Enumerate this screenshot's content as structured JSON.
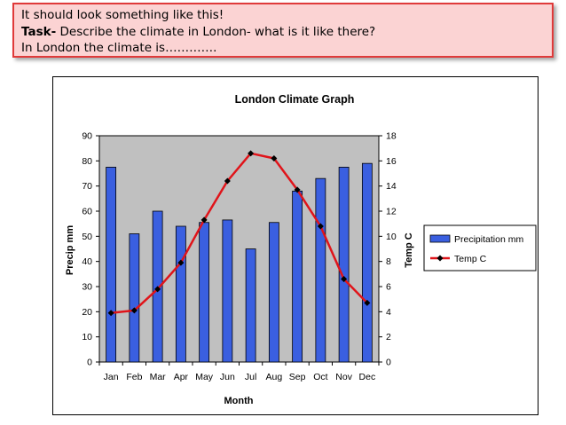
{
  "instruction": {
    "line1": "It should look something like this!",
    "task_label": "Task-",
    "task_text": " Describe the climate in London- what is it like there?",
    "line3": "In London the climate is…………."
  },
  "colors": {
    "bar": "#3a5fe0",
    "line": "#e0141a",
    "plot_bg": "#c0c0c0",
    "box_bg": "#fbd3d3",
    "box_border": "#e03a3a"
  },
  "chart_data": {
    "type": "bar",
    "title": "London Climate Graph",
    "xlabel": "Month",
    "ylabel": "Precip mm",
    "y2label": "Temp C",
    "categories": [
      "Jan",
      "Feb",
      "Mar",
      "Apr",
      "May",
      "Jun",
      "Jul",
      "Aug",
      "Sep",
      "Oct",
      "Nov",
      "Dec"
    ],
    "ylim": [
      0,
      90
    ],
    "y2lim": [
      0,
      18
    ],
    "yticks": [
      "0",
      "10",
      "20",
      "30",
      "40",
      "50",
      "60",
      "70",
      "80",
      "90"
    ],
    "y2ticks": [
      "0",
      "2",
      "4",
      "6",
      "8",
      "10",
      "12",
      "14",
      "16",
      "18"
    ],
    "legend_position": "right",
    "series": [
      {
        "name": "Precipitation mm",
        "type": "bar",
        "axis": "left",
        "values": [
          77.5,
          51,
          60,
          54,
          55.5,
          56.5,
          45,
          55.5,
          68,
          73,
          77.5,
          79
        ]
      },
      {
        "name": "Temp C",
        "type": "line",
        "axis": "right",
        "values": [
          3.9,
          4.1,
          5.8,
          7.9,
          11.3,
          14.4,
          16.6,
          16.2,
          13.7,
          10.8,
          6.6,
          4.7
        ]
      }
    ]
  }
}
